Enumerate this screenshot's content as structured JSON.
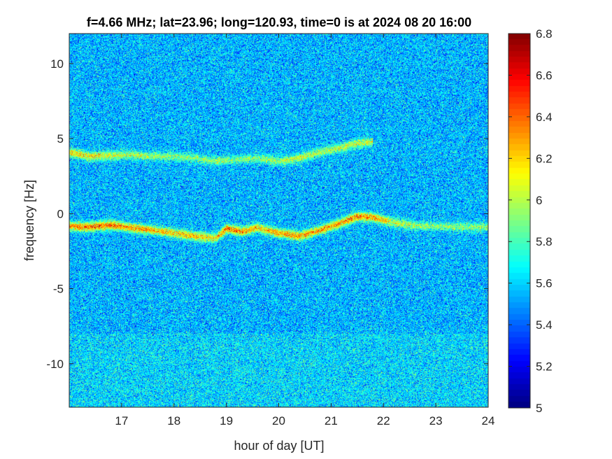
{
  "chart_data": {
    "type": "heatmap",
    "title": "f=4.66 MHz;  lat=23.96; long=120.93, time=0 is at 2024 08 20 16:00",
    "xlabel": "hour of day [UT]",
    "ylabel": "frequency [Hz]",
    "xlim": [
      16.0,
      24.0
    ],
    "ylim": [
      -12.9,
      12.0
    ],
    "x_ticks": [
      17,
      18,
      19,
      20,
      21,
      22,
      23,
      24
    ],
    "x_tick_labels": [
      "17",
      "18",
      "19",
      "20",
      "21",
      "22",
      "23",
      "24"
    ],
    "y_ticks": [
      10,
      5,
      0,
      -5,
      -10
    ],
    "y_tick_labels": [
      "10",
      "5",
      "0",
      "-5",
      "-10"
    ],
    "colorbar": {
      "range": [
        5.0,
        6.8
      ],
      "ticks": [
        6.8,
        6.6,
        6.4,
        6.2,
        6.0,
        5.8,
        5.6,
        5.4,
        5.2,
        5.0
      ],
      "tick_labels": [
        "6.8",
        "6.6",
        "6.4",
        "6.2",
        "6",
        "5.8",
        "5.6",
        "5.4",
        "5.2",
        "5"
      ],
      "colormap": "jet"
    },
    "background_level": 5.55,
    "traces": [
      {
        "x": [
          16.0,
          16.4,
          16.8,
          17.2,
          17.6,
          18.0,
          18.4,
          18.8,
          19.0,
          19.3,
          19.6,
          20.0,
          20.4,
          20.8,
          21.2,
          21.5,
          21.8,
          22.2,
          22.6,
          23.0,
          23.4,
          24.0
        ],
        "y": [
          -0.85,
          -0.9,
          -0.75,
          -0.95,
          -1.1,
          -1.3,
          -1.5,
          -1.65,
          -1.0,
          -1.2,
          -0.95,
          -1.3,
          -1.5,
          -1.1,
          -0.6,
          -0.2,
          -0.25,
          -0.6,
          -0.8,
          -0.85,
          -0.9,
          -0.9
        ],
        "peak": [
          6.55,
          6.6,
          6.6,
          6.5,
          6.45,
          6.4,
          6.4,
          6.3,
          6.6,
          6.55,
          6.35,
          6.5,
          6.5,
          6.45,
          6.55,
          6.6,
          6.5,
          6.2,
          6.05,
          6.0,
          6.0,
          6.0
        ]
      },
      {
        "x": [
          16.0,
          16.4,
          16.8,
          17.2,
          17.6,
          18.0,
          18.4,
          18.8,
          19.2,
          19.6,
          20.0,
          20.4,
          20.8,
          21.2,
          21.5,
          21.8
        ],
        "y": [
          4.1,
          3.8,
          3.9,
          3.9,
          3.8,
          3.8,
          3.7,
          3.5,
          3.6,
          3.7,
          3.5,
          3.7,
          4.1,
          4.4,
          4.7,
          4.8
        ],
        "peak": [
          6.35,
          6.3,
          6.2,
          6.1,
          6.05,
          6.0,
          6.0,
          6.0,
          6.0,
          6.0,
          6.1,
          6.15,
          6.1,
          6.15,
          6.2,
          6.15
        ]
      }
    ]
  }
}
